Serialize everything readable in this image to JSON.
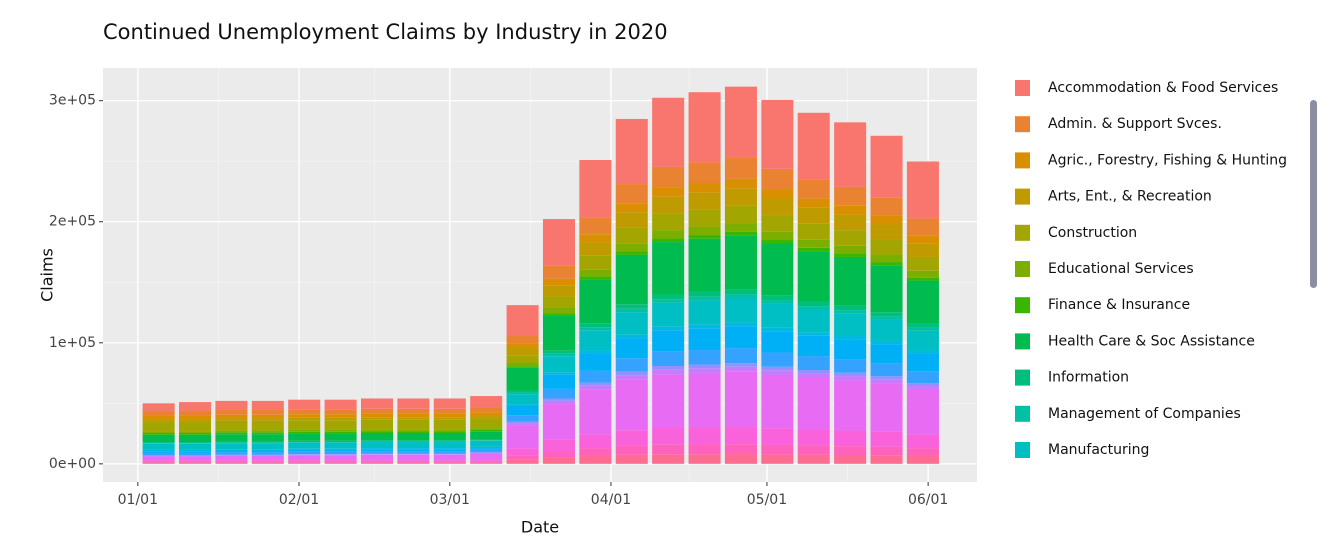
{
  "chart_data": {
    "type": "stacked_bar",
    "title": "Continued Unemployment Claims by Industry in 2020",
    "x_label": "Date",
    "y_label": "Claims",
    "x": [
      "01/05",
      "01/12",
      "01/19",
      "01/26",
      "02/02",
      "02/09",
      "02/16",
      "02/23",
      "03/01",
      "03/08",
      "03/15",
      "03/22",
      "03/29",
      "04/05",
      "04/12",
      "04/19",
      "04/26",
      "05/03",
      "05/10",
      "05/17",
      "05/24",
      "05/31"
    ],
    "xticks": [
      "01/01",
      "02/01",
      "03/01",
      "04/01",
      "05/01",
      "06/01"
    ],
    "ylim": [
      -15000,
      327000
    ],
    "yticks": [
      {
        "value": 0,
        "label": "0e+00"
      },
      {
        "value": 100000,
        "label": "1e+05"
      },
      {
        "value": 200000,
        "label": "2e+05"
      },
      {
        "value": 300000,
        "label": "3e+05"
      }
    ],
    "grid": true,
    "legend": "right",
    "series": [
      {
        "name": "Accommodation & Food Services",
        "color": "#F8766D",
        "values": [
          6000,
          7000,
          7500,
          7500,
          8000,
          8000,
          8500,
          8500,
          8500,
          9500,
          24700,
          38200,
          47400,
          53800,
          57100,
          58000,
          58900,
          56900,
          54800,
          53300,
          51200,
          47200
        ]
      },
      {
        "name": "Admin. & Support Svces.",
        "color": "#EA8331",
        "values": [
          4000,
          4000,
          4000,
          4000,
          4000,
          4000,
          4000,
          4000,
          4000,
          4000,
          7300,
          11200,
          13900,
          15800,
          16700,
          17000,
          17300,
          16700,
          16100,
          15600,
          15000,
          13800
        ]
      },
      {
        "name": "Agric., Forestry, Fishing & Hunting",
        "color": "#D89000",
        "values": [
          3000,
          3000,
          3000,
          3000,
          3000,
          3000,
          3000,
          3000,
          3000,
          3000,
          3400,
          5300,
          6500,
          7400,
          7900,
          8000,
          8100,
          7800,
          7600,
          7300,
          7100,
          6500
        ]
      },
      {
        "name": "Arts, Ent., & Recreation",
        "color": "#C09B00",
        "values": [
          2000,
          2000,
          2000,
          2000,
          2000,
          2000,
          2000,
          2000,
          2000,
          2000,
          6000,
          9200,
          11400,
          13000,
          13800,
          14000,
          14200,
          13700,
          13200,
          12900,
          12400,
          11400
        ]
      },
      {
        "name": "Construction",
        "color": "#A3A500",
        "values": [
          8000,
          8000,
          8000,
          8000,
          8000,
          8000,
          8000,
          8000,
          8000,
          8000,
          6000,
          9200,
          11400,
          13000,
          13800,
          14000,
          14200,
          13700,
          13200,
          12900,
          12400,
          11400
        ]
      },
      {
        "name": "Educational Services",
        "color": "#7CAE00",
        "values": [
          1500,
          1500,
          1500,
          1500,
          1500,
          1500,
          1500,
          1500,
          1500,
          1500,
          3000,
          4600,
          5700,
          6500,
          6900,
          7000,
          7100,
          6900,
          6600,
          6400,
          6200,
          5700
        ]
      },
      {
        "name": "Finance & Insurance",
        "color": "#39B600",
        "values": [
          1500,
          1500,
          1500,
          1500,
          1500,
          1500,
          1500,
          1500,
          1500,
          1500,
          1300,
          2000,
          2500,
          2800,
          3000,
          3000,
          3000,
          2900,
          2800,
          2800,
          2600,
          2400
        ]
      },
      {
        "name": "Health Care & Soc Assistance",
        "color": "#00BB4E",
        "values": [
          6000,
          6000,
          6000,
          6000,
          6000,
          6000,
          6000,
          6000,
          6000,
          6000,
          18800,
          29000,
          36000,
          40800,
          43300,
          44000,
          44700,
          43100,
          41600,
          40400,
          38800,
          35800
        ]
      },
      {
        "name": "Information",
        "color": "#00BF7D",
        "values": [
          1000,
          1000,
          1000,
          1000,
          1000,
          1000,
          1000,
          1000,
          1000,
          1000,
          1700,
          2600,
          3300,
          3700,
          3900,
          4000,
          4100,
          3900,
          3800,
          3700,
          3500,
          3300
        ]
      },
      {
        "name": "Management of Companies",
        "color": "#00C1A3",
        "values": [
          500,
          500,
          500,
          500,
          500,
          500,
          500,
          500,
          500,
          500,
          1300,
          2000,
          2500,
          2800,
          3000,
          3000,
          3000,
          2900,
          2800,
          2800,
          2600,
          2400
        ]
      },
      {
        "name": "Manufacturing",
        "color": "#00BFC4",
        "values": [
          5000,
          5000,
          5000,
          5000,
          5000,
          5000,
          5000,
          5000,
          5000,
          5000,
          8500,
          13200,
          16400,
          18600,
          19700,
          20000,
          20300,
          19600,
          18900,
          18400,
          17700,
          16300
        ]
      },
      {
        "name": null,
        "color": "#00BAE0",
        "values": [
          1000,
          1000,
          1000,
          1000,
          1000,
          1000,
          1000,
          1000,
          1000,
          1000,
          1300,
          2000,
          2500,
          2800,
          3000,
          3000,
          3000,
          2900,
          2800,
          2800,
          2600,
          2400
        ]
      },
      {
        "name": null,
        "color": "#00B0F6",
        "values": [
          1500,
          1500,
          1500,
          1500,
          1500,
          1500,
          1500,
          1500,
          1500,
          1500,
          7700,
          11800,
          14700,
          16700,
          17700,
          18000,
          18300,
          17600,
          17000,
          16500,
          15900,
          14700
        ]
      },
      {
        "name": null,
        "color": "#35A2FF",
        "values": [
          2000,
          2000,
          2000,
          2000,
          2000,
          2000,
          2000,
          2000,
          2000,
          2000,
          5100,
          7900,
          9800,
          11100,
          11800,
          12000,
          12200,
          11800,
          11300,
          11000,
          10600,
          9800
        ]
      },
      {
        "name": null,
        "color": "#9590FF",
        "values": [
          500,
          500,
          500,
          500,
          500,
          500,
          500,
          500,
          500,
          500,
          1300,
          2000,
          2500,
          2800,
          3000,
          3000,
          3000,
          2900,
          2800,
          2800,
          2600,
          2400
        ]
      },
      {
        "name": null,
        "color": "#C77CFF",
        "values": [
          500,
          500,
          500,
          500,
          500,
          500,
          500,
          500,
          500,
          500,
          1700,
          2600,
          3300,
          3700,
          3900,
          4000,
          4100,
          3900,
          3800,
          3700,
          3500,
          3300
        ]
      },
      {
        "name": null,
        "color": "#E76BF3",
        "values": [
          3000,
          3000,
          3500,
          3500,
          4000,
          4000,
          4500,
          4500,
          4500,
          5500,
          19200,
          29600,
          36800,
          41800,
          44300,
          45000,
          45700,
          44100,
          42500,
          41300,
          39700,
          36600
        ]
      },
      {
        "name": null,
        "color": "#FA62DB",
        "values": [
          1500,
          1500,
          1500,
          1500,
          1500,
          1500,
          1500,
          1500,
          1500,
          1500,
          6000,
          9200,
          11400,
          13000,
          13800,
          14000,
          14200,
          13700,
          13200,
          12900,
          12400,
          11400
        ]
      },
      {
        "name": null,
        "color": "#FF62BC",
        "values": [
          500,
          500,
          500,
          500,
          500,
          500,
          500,
          500,
          500,
          500,
          3400,
          5300,
          6500,
          7400,
          7900,
          8000,
          8100,
          7800,
          7600,
          7300,
          7100,
          6500
        ]
      },
      {
        "name": null,
        "color": "#FF6C91",
        "values": [
          1000,
          1000,
          1000,
          1000,
          1000,
          1000,
          1000,
          1000,
          1000,
          1000,
          3400,
          5300,
          6500,
          7400,
          7900,
          8000,
          8100,
          7800,
          7600,
          7300,
          7100,
          6500
        ]
      }
    ]
  }
}
